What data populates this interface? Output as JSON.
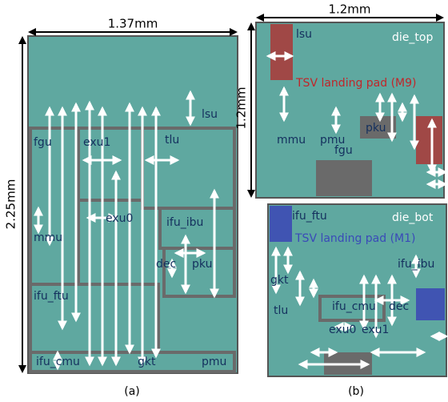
{
  "panel_a": {
    "width_label": "1.37mm",
    "height_label": "2.25mm",
    "caption": "(a)",
    "blocks": [
      "lsu",
      "fgu",
      "exu1",
      "tlu",
      "exu0",
      "ifu_ibu",
      "mmu",
      "dec",
      "pku",
      "ifu_ftu",
      "ifu_cmu",
      "gkt",
      "pmu"
    ]
  },
  "panel_b": {
    "width_label": "1.2mm",
    "height_label": "1.2mm",
    "caption": "(b)",
    "top": {
      "name": "die_top",
      "note": "TSV landing pad (M9)",
      "blocks": [
        "lsu",
        "pku",
        "mmu",
        "pmu",
        "fgu"
      ]
    },
    "bottom": {
      "name": "die_bot",
      "note": "TSV landing pad (M1)",
      "blocks": [
        "ifu_ftu",
        "ifu_ibu",
        "gkt",
        "tlu",
        "ifu_cmu",
        "dec",
        "exu0",
        "exu1"
      ]
    }
  }
}
